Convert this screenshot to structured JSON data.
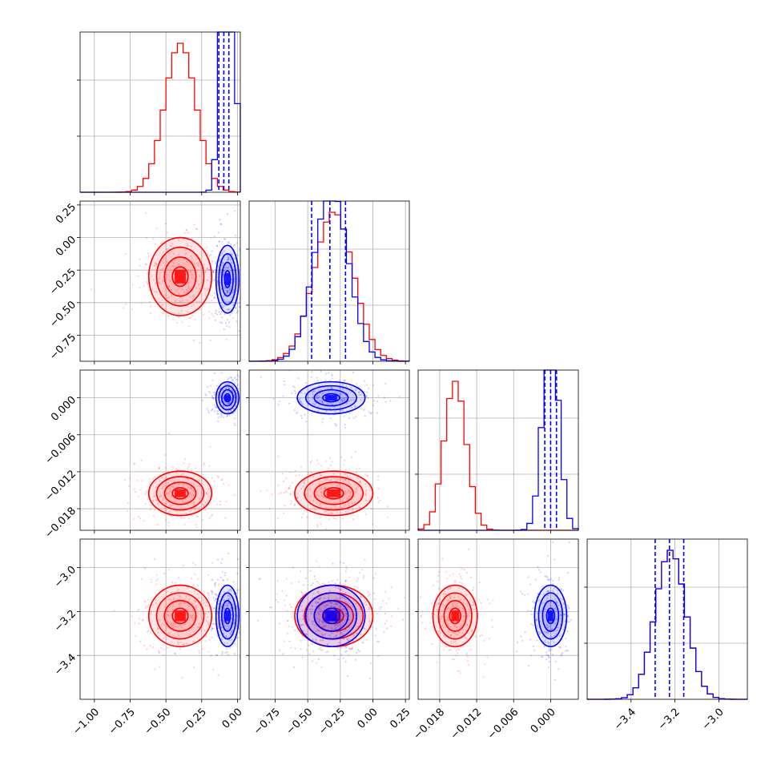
{
  "chart_data": {
    "type": "scatter",
    "description_kind": "corner plot",
    "grid": true,
    "colors": {
      "series_a": "#ff0000",
      "series_b": "#0000ff",
      "grid": "#b0b0b0",
      "frame": "#000000"
    },
    "series": [
      {
        "color": "#ff0000",
        "means": [
          -0.4,
          -0.3,
          -0.0155,
          -3.22
        ],
        "stds": [
          0.11,
          0.15,
          0.0018,
          0.07
        ]
      },
      {
        "color": "#0000ff",
        "means": [
          -0.07,
          -0.32,
          0.0,
          -3.22
        ],
        "stds": [
          0.04,
          0.13,
          0.0013,
          0.07
        ]
      }
    ],
    "parameters": [
      {
        "range": [
          -1.1,
          0.02
        ],
        "ticks": [
          -1.0,
          -0.75,
          -0.5,
          -0.25,
          0.0
        ],
        "tick_labels": [
          "−1.00",
          "−0.75",
          "−0.50",
          "−0.25",
          "0.00"
        ]
      },
      {
        "range": [
          -0.95,
          0.28
        ],
        "ticks": [
          -0.75,
          -0.5,
          -0.25,
          0.0,
          0.25
        ],
        "tick_labels": [
          "−0.75",
          "−0.50",
          "−0.25",
          "0.00",
          "0.25"
        ]
      },
      {
        "range": [
          -0.0215,
          0.0045
        ],
        "ticks": [
          -0.018,
          -0.012,
          -0.006,
          0.0
        ],
        "tick_labels": [
          "−0.018",
          "−0.012",
          "−0.006",
          "0.000"
        ]
      },
      {
        "range": [
          -3.6,
          -2.87
        ],
        "ticks": [
          -3.4,
          -3.2,
          -3.0
        ],
        "tick_labels": [
          "−3.4",
          "−3.2",
          "−3.0"
        ]
      }
    ],
    "quantile_lines": [
      {
        "param": 0,
        "color": "#0000ff",
        "values": [
          -0.13,
          -0.095,
          -0.06
        ]
      },
      {
        "param": 1,
        "color": "#0000ff",
        "values": [
          -0.47,
          -0.33,
          -0.21
        ]
      },
      {
        "param": 2,
        "color": "#0000ff",
        "values": [
          -0.00095,
          0.0,
          0.00095
        ]
      },
      {
        "param": 3,
        "color": "#0000ff",
        "values": [
          -3.29,
          -3.225,
          -3.16
        ]
      }
    ],
    "contour_levels": [
      0.5,
      1.0,
      1.5,
      2.0
    ]
  }
}
